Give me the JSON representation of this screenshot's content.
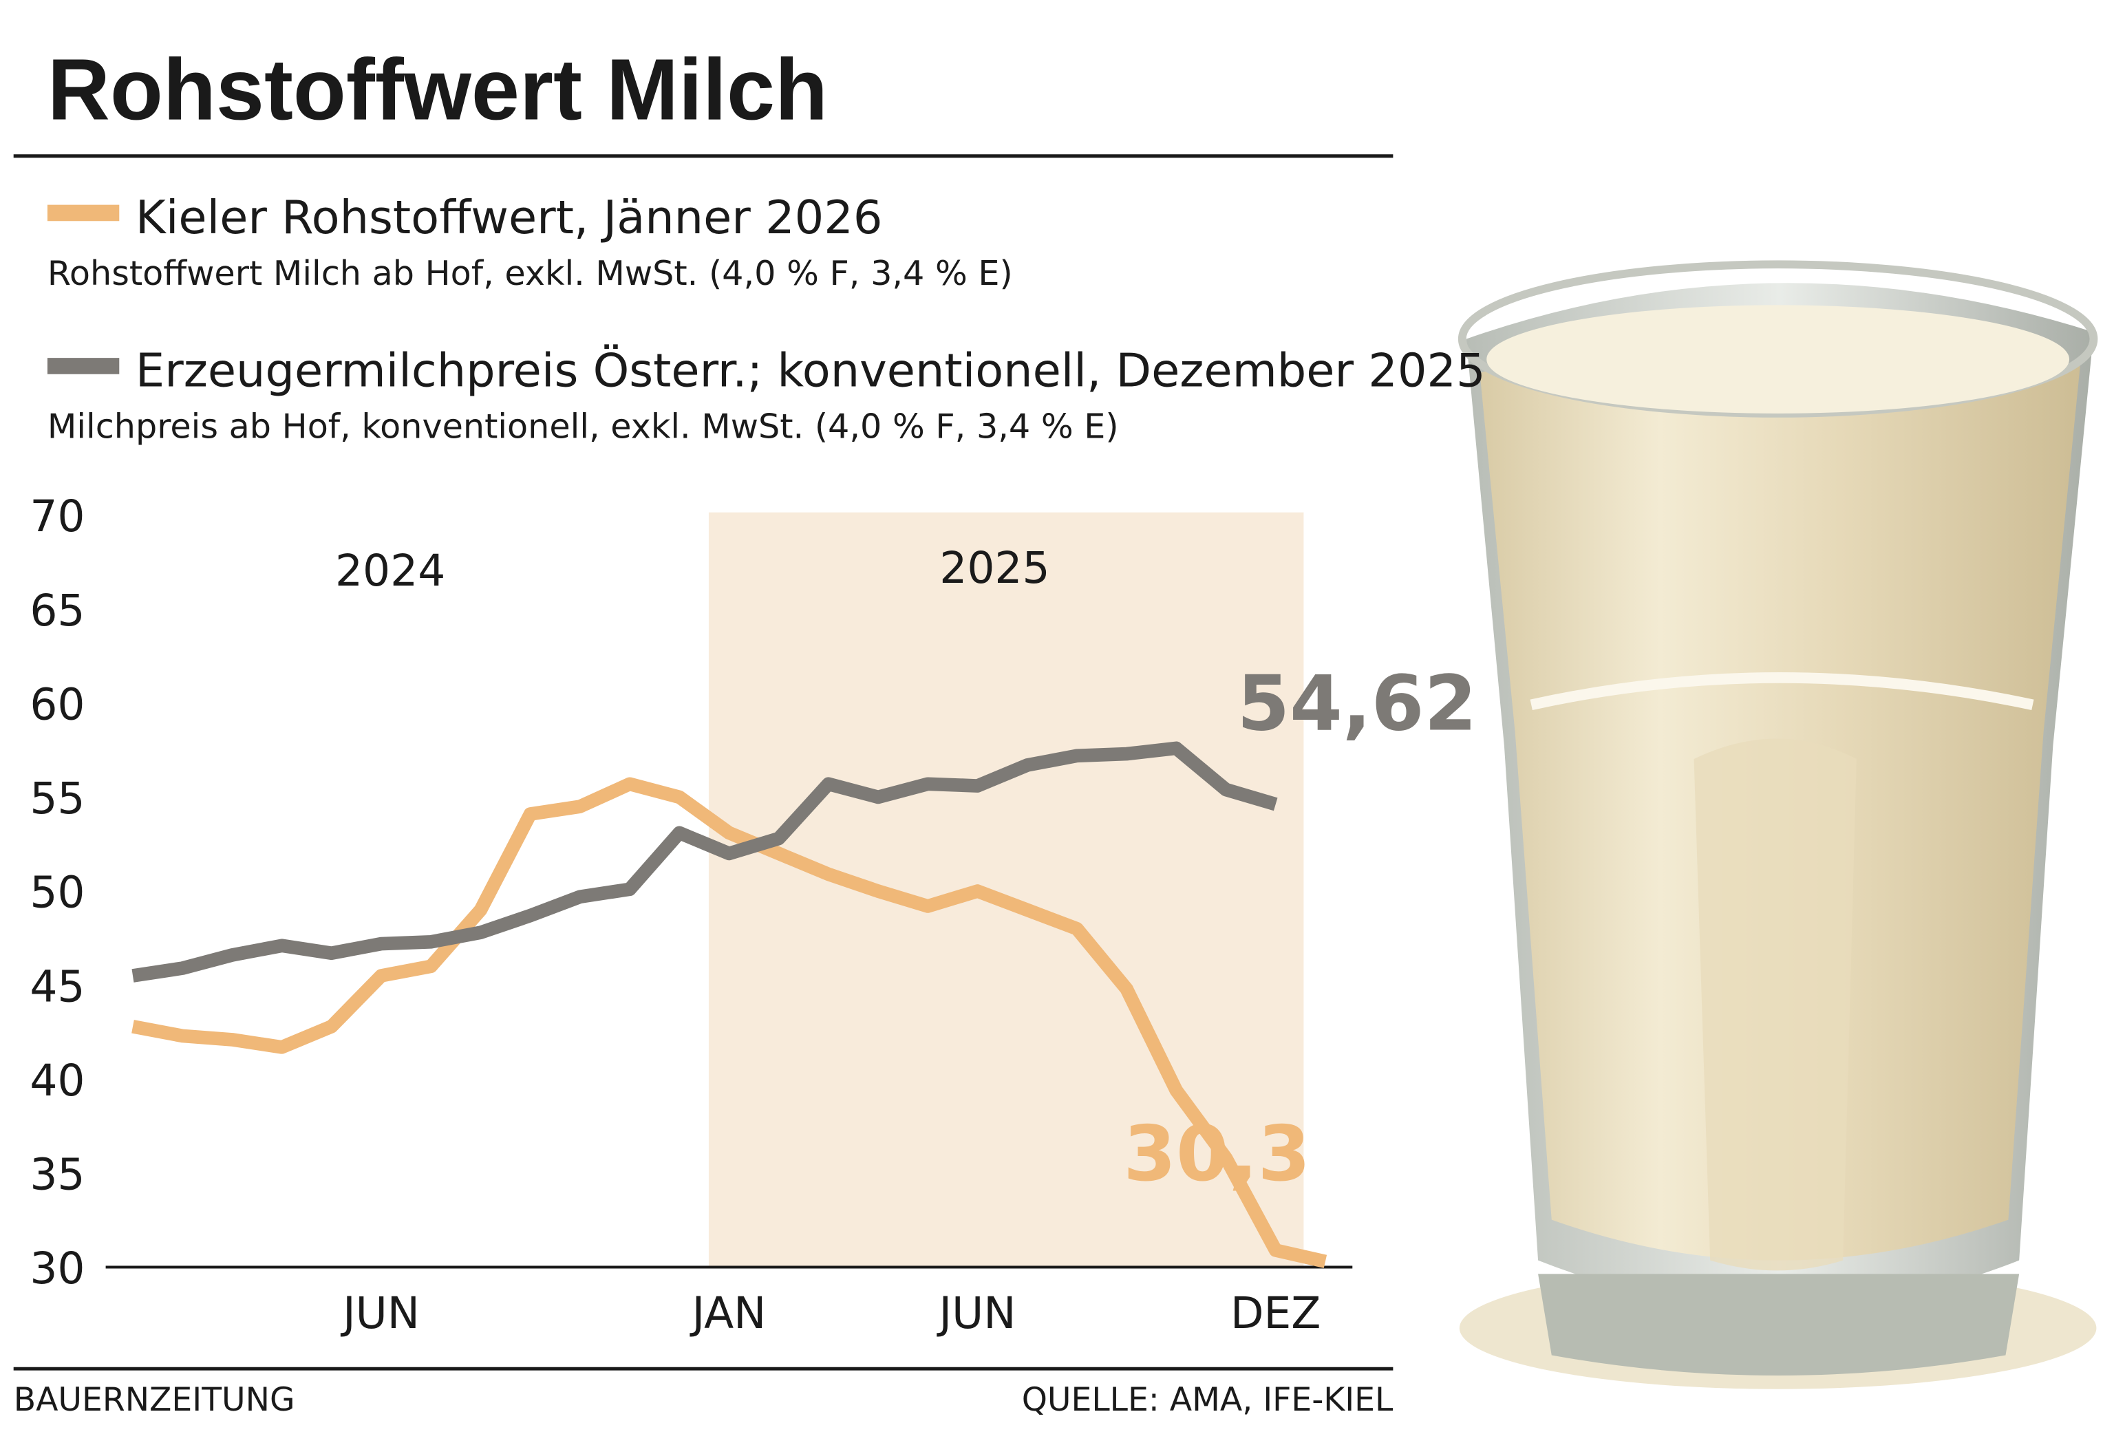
{
  "chart_data": {
    "type": "line",
    "title": "Rohstoffwert Milch",
    "categories": [
      null,
      null,
      null,
      null,
      null,
      "JUN",
      null,
      null,
      null,
      null,
      null,
      null,
      "JAN",
      null,
      null,
      null,
      null,
      "JUN",
      null,
      null,
      null,
      null,
      null,
      "DEZ",
      null
    ],
    "series": [
      {
        "name": "Kieler Rohstoffwert, Jänner 2026",
        "description": "Rohstoffwert Milch ab Hof, exkl. MwSt. (4,0 % F, 3,4 % E)",
        "color": "#f0b878",
        "values": [
          42.8,
          42.3,
          42.1,
          41.7,
          42.8,
          45.5,
          46.0,
          49.0,
          54.1,
          54.5,
          55.7,
          55.0,
          53.1,
          52.0,
          50.9,
          50.0,
          49.2,
          50.0,
          49.0,
          48.0,
          44.8,
          39.4,
          35.8,
          30.9,
          30.3
        ],
        "value_labels": [
          null,
          null,
          null,
          null,
          null,
          null,
          null,
          null,
          null,
          null,
          null,
          null,
          null,
          null,
          null,
          null,
          null,
          null,
          null,
          null,
          null,
          null,
          null,
          null,
          "30,3"
        ]
      },
      {
        "name": "Erzeugermilchpreis Österr.; konventionell, Dezember 2025",
        "description": "Milchpreis ab Hof, konventionell, exkl. MwSt. (4,0 % F, 3,4 % E)",
        "color": "#7d7a76",
        "values": [
          45.5,
          45.9,
          46.6,
          47.1,
          46.7,
          47.2,
          47.3,
          47.8,
          48.7,
          49.7,
          50.1,
          53.1,
          52.0,
          52.8,
          55.7,
          55.0,
          55.7,
          55.6,
          56.7,
          57.2,
          57.3,
          57.6,
          55.4,
          54.62,
          null
        ],
        "value_labels": [
          null,
          null,
          null,
          null,
          null,
          null,
          null,
          null,
          null,
          null,
          null,
          null,
          null,
          null,
          null,
          null,
          null,
          null,
          null,
          null,
          null,
          null,
          null,
          "54,62",
          null
        ]
      }
    ],
    "year_labels": [
      "2024",
      "2025"
    ],
    "ylim": [
      30,
      70
    ],
    "yticks": [
      30,
      35,
      40,
      45,
      50,
      55,
      60,
      65,
      70
    ],
    "grid": false,
    "publisher": "BAUERNZEITUNG",
    "source": "QUELLE: AMA, IFE-KIEL"
  }
}
